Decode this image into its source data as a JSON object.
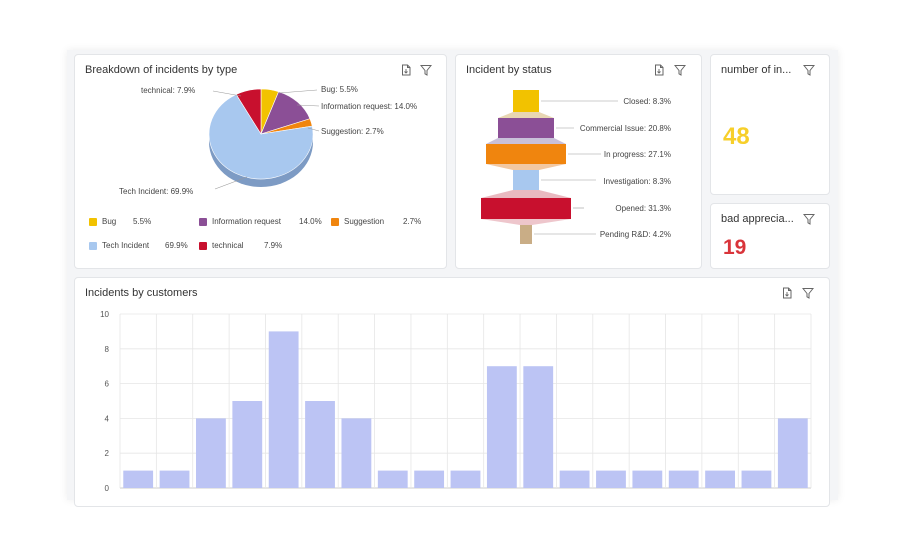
{
  "colors": {
    "bug": "#f2c200",
    "information_request": "#8b4f96",
    "suggestion": "#f0850e",
    "tech_incident": "#a8c8ef",
    "technical": "#c8102e",
    "bar": "#bcc4f4",
    "kpi_yellow": "#f7cf2a",
    "kpi_red": "#d9343a"
  },
  "icons": {
    "export": "export-pdf-icon",
    "filter": "filter-icon"
  },
  "panels": {
    "type": {
      "title": "Breakdown of incidents by type",
      "pie_labels": {
        "technical": "technical: 7.9%",
        "bug": "Bug: 5.5%",
        "info": "Information request: 14.0%",
        "suggestion": "Suggestion: 2.7%",
        "tech": "Tech Incident: 69.9%"
      },
      "legend": [
        {
          "label": "Bug",
          "value": "5.5%"
        },
        {
          "label": "Information request",
          "value": "14.0%"
        },
        {
          "label": "Suggestion",
          "value": "2.7%"
        },
        {
          "label": "Tech Incident",
          "value": "69.9%"
        },
        {
          "label": "technical",
          "value": "7.9%"
        }
      ]
    },
    "status": {
      "title": "Incident by status",
      "labels": [
        "Closed: 8.3%",
        "Commercial Issue: 20.8%",
        "In progress: 27.1%",
        "Investigation: 8.3%",
        "Opened: 31.3%",
        "Pending R&D: 4.2%"
      ]
    },
    "number": {
      "title": "number of in...",
      "value": "48"
    },
    "bad": {
      "title": "bad apprecia...",
      "value": "19"
    },
    "customers": {
      "title": "Incidents by customers"
    }
  },
  "chart_data": [
    {
      "type": "pie",
      "categories": [
        "Bug",
        "Information request",
        "Suggestion",
        "Tech Incident",
        "technical"
      ],
      "values": [
        5.5,
        14.0,
        2.7,
        69.9,
        7.9
      ],
      "title": "Breakdown of incidents by type"
    },
    {
      "type": "bar",
      "categories": [
        "Closed",
        "Commercial Issue",
        "In progress",
        "Investigation",
        "Opened",
        "Pending R&D"
      ],
      "values": [
        8.3,
        20.8,
        27.1,
        8.3,
        31.3,
        4.2
      ],
      "title": "Incident by status"
    },
    {
      "type": "bar",
      "title": "Incidents by customers",
      "values": [
        1,
        1,
        4,
        5,
        9,
        5,
        4,
        1,
        1,
        1,
        7,
        7,
        1,
        1,
        1,
        1,
        1,
        1,
        4
      ],
      "yticks": [
        "0",
        "2",
        "4",
        "6",
        "8",
        "10"
      ],
      "ylim": [
        0,
        10
      ],
      "grid": true
    }
  ]
}
